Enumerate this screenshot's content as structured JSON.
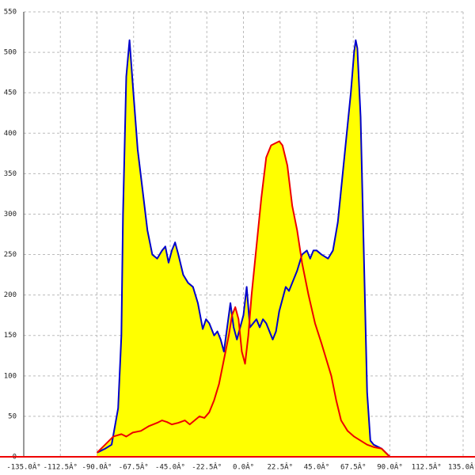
{
  "chart_data": {
    "type": "area_line",
    "xlim": [
      -135,
      135
    ],
    "ylim": [
      0,
      550
    ],
    "xticks": [
      {
        "value": -135,
        "label": "-135.0Â°"
      },
      {
        "value": -112.5,
        "label": "-112.5Â°"
      },
      {
        "value": -90,
        "label": "-90.0Â°"
      },
      {
        "value": -67.5,
        "label": "-67.5Â°"
      },
      {
        "value": -45,
        "label": "-45.0Â°"
      },
      {
        "value": -22.5,
        "label": "-22.5Â°"
      },
      {
        "value": 0,
        "label": "0.0Â°"
      },
      {
        "value": 22.5,
        "label": "22.5Â°"
      },
      {
        "value": 45,
        "label": "45.0Â°"
      },
      {
        "value": 67.5,
        "label": "67.5Â°"
      },
      {
        "value": 90,
        "label": "90.0Â°"
      },
      {
        "value": 112.5,
        "label": "112.5Â°"
      },
      {
        "value": 135,
        "label": "135.0Â°"
      }
    ],
    "yticks": [
      0,
      50,
      100,
      150,
      200,
      250,
      300,
      350,
      400,
      450,
      500,
      550
    ],
    "grid": true,
    "fill_color": "#ffff00",
    "series": [
      {
        "color": "#0000cc",
        "x": [
          -90,
          -85,
          -81,
          -77,
          -75,
          -74,
          -72,
          -70,
          -68,
          -65,
          -62,
          -59,
          -56,
          -53,
          -50,
          -48,
          -46,
          -44,
          -42,
          -40,
          -37,
          -34,
          -31,
          -28,
          -25,
          -23,
          -21,
          -18,
          -16,
          -14,
          -12,
          -10,
          -8,
          -6,
          -4,
          -2,
          0,
          2,
          4,
          6,
          8,
          10,
          12,
          14,
          16,
          18,
          20,
          22,
          24,
          26,
          28,
          30,
          33,
          36,
          39,
          41,
          43,
          45,
          48,
          52,
          55,
          58,
          60,
          62,
          64,
          66,
          68,
          69,
          70,
          72,
          74,
          76,
          78,
          80,
          85,
          90
        ],
        "values": [
          5,
          10,
          15,
          60,
          150,
          300,
          470,
          515,
          460,
          380,
          330,
          280,
          250,
          245,
          255,
          260,
          240,
          255,
          265,
          250,
          225,
          215,
          210,
          190,
          158,
          170,
          165,
          150,
          155,
          145,
          130,
          160,
          190,
          160,
          145,
          160,
          175,
          210,
          160,
          165,
          170,
          160,
          170,
          165,
          155,
          145,
          155,
          180,
          195,
          210,
          205,
          215,
          230,
          250,
          255,
          245,
          255,
          255,
          250,
          245,
          255,
          290,
          330,
          370,
          410,
          450,
          500,
          515,
          505,
          420,
          250,
          80,
          20,
          15,
          10,
          0
        ]
      },
      {
        "color": "#ee0000",
        "x": [
          -90,
          -85,
          -80,
          -75,
          -72,
          -68,
          -63,
          -58,
          -53,
          -50,
          -47,
          -44,
          -40,
          -36,
          -33,
          -30,
          -27,
          -24,
          -21,
          -18,
          -15,
          -12,
          -9,
          -7,
          -5,
          -3,
          -1,
          1,
          3,
          5,
          8,
          11,
          14,
          17,
          20,
          22,
          24,
          27,
          30,
          33,
          36,
          40,
          44,
          48,
          51,
          54,
          57,
          60,
          64,
          68,
          72,
          76,
          80,
          85,
          90
        ],
        "values": [
          5,
          15,
          25,
          28,
          25,
          30,
          32,
          38,
          42,
          45,
          43,
          40,
          42,
          45,
          40,
          45,
          50,
          48,
          55,
          70,
          90,
          120,
          150,
          175,
          185,
          170,
          130,
          115,
          150,
          200,
          260,
          320,
          370,
          385,
          388,
          390,
          385,
          360,
          310,
          280,
          240,
          200,
          165,
          140,
          120,
          100,
          70,
          45,
          32,
          25,
          20,
          15,
          12,
          10,
          0
        ]
      }
    ]
  }
}
